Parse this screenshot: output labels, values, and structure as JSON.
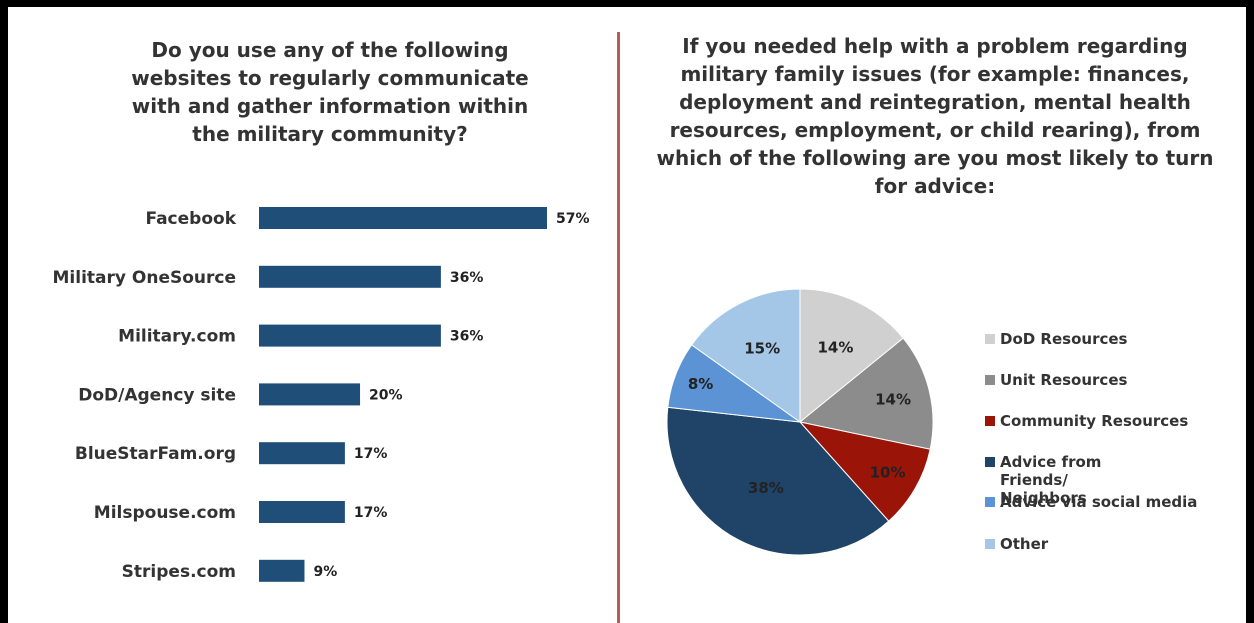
{
  "left_chart": {
    "title": "Do you use any of the following websites to regularly communicate with and gather information within the military community?",
    "chart_data": {
      "type": "bar",
      "orientation": "horizontal",
      "categories": [
        "Facebook",
        "Military OneSource",
        "Military.com",
        "DoD/Agency site",
        "BlueStarFam.org",
        "Milspouse.com",
        "Stripes.com"
      ],
      "values": [
        57,
        36,
        36,
        20,
        17,
        17,
        9
      ],
      "value_labels": [
        "57%",
        "36%",
        "36%",
        "20%",
        "17%",
        "17%",
        "9%"
      ],
      "bar_color": "#1f4e79",
      "xlim": [
        0,
        100
      ]
    }
  },
  "right_chart": {
    "title": "If you needed help with a problem regarding military family issues (for example: finances, deployment and reintegration, mental health resources, employment, or child rearing), from which of the following are you most likely to turn for advice:",
    "chart_data": {
      "type": "pie",
      "slices": [
        {
          "label": "DoD Resources",
          "value": 14,
          "value_label": "14%",
          "color": "#d0d0d0"
        },
        {
          "label": "Unit Resources",
          "value": 14,
          "value_label": "14%",
          "color": "#8c8c8c"
        },
        {
          "label": "Community Resources",
          "value": 10,
          "value_label": "10%",
          "color": "#9b1408"
        },
        {
          "label": "Advice from Friends/ Neighbors",
          "value": 38,
          "value_label": "38%",
          "color": "#1f4468"
        },
        {
          "label": "Advice via social media",
          "value": 8,
          "value_label": "8%",
          "color": "#5b93d4"
        },
        {
          "label": "Other",
          "value": 15,
          "value_label": "15%",
          "color": "#a4c6e7"
        }
      ],
      "legend_position": "right"
    }
  }
}
